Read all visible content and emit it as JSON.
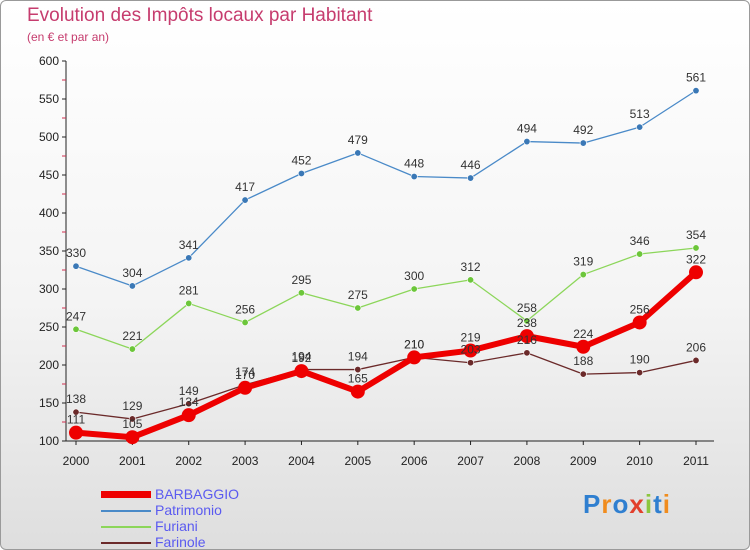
{
  "chart_data": {
    "type": "line",
    "title": "Evolution des Impôts locaux par Habitant",
    "subtitle": "(en € et par an)",
    "categories": [
      "2000",
      "2001",
      "2002",
      "2003",
      "2004",
      "2005",
      "2006",
      "2007",
      "2008",
      "2009",
      "2010",
      "2011"
    ],
    "ylim": [
      100,
      600
    ],
    "yticks": [
      100,
      150,
      200,
      250,
      300,
      350,
      400,
      450,
      500,
      550,
      600
    ],
    "grid": false,
    "legend_position": "bottom-left",
    "series": [
      {
        "name": "Patrimonio",
        "color": "#4a8ac8",
        "marker": "#3a78b6",
        "values": [
          330,
          304,
          341,
          417,
          452,
          479,
          448,
          446,
          494,
          492,
          513,
          561
        ]
      },
      {
        "name": "Furiani",
        "color": "#8cd65a",
        "marker": "#6cc63a",
        "values": [
          247,
          221,
          281,
          256,
          295,
          275,
          300,
          312,
          258,
          319,
          346,
          354
        ]
      },
      {
        "name": "Farinole",
        "color": "#6b2a2a",
        "marker": "#6b2a2a",
        "values": [
          138,
          129,
          149,
          174,
          194,
          194,
          210,
          203,
          216,
          188,
          190,
          206
        ]
      },
      {
        "name": "BARBAGGIO",
        "color": "#ee0000",
        "marker": "#ee0000",
        "values": [
          111,
          105,
          134,
          170,
          192,
          165,
          210,
          219,
          238,
          224,
          256,
          322
        ]
      }
    ],
    "legend_order": [
      "BARBAGGIO",
      "Patrimonio",
      "Furiani",
      "Farinole"
    ]
  },
  "logo": {
    "text": "Proxiti",
    "colors": [
      "#2f7fd0",
      "#f08c1e",
      "#2f7fd0",
      "#e23f2c",
      "#8cc63f",
      "#2f7fd0",
      "#f08c1e"
    ]
  }
}
